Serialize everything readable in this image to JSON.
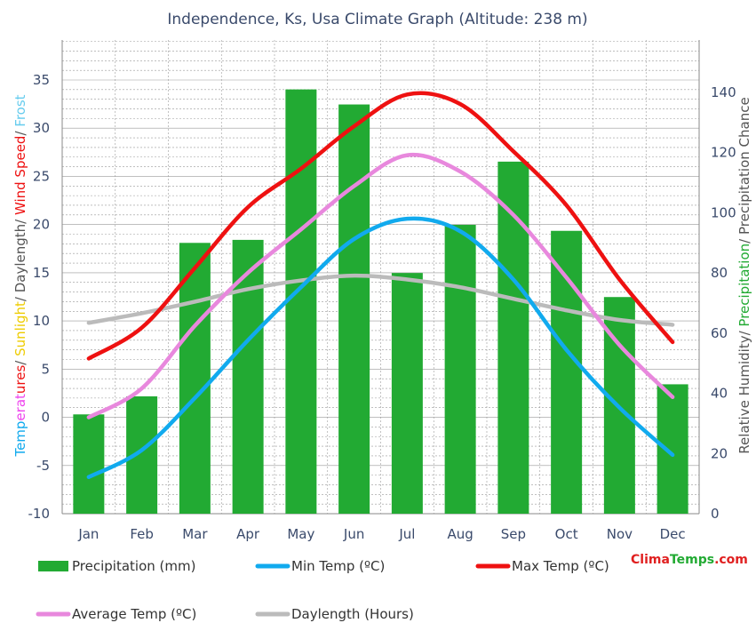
{
  "colors": {
    "precipitation": "#22aa33",
    "min_temp": "#11aaee",
    "max_temp": "#ee1111",
    "avg_temp": "#e888dd",
    "daylength": "#bbbbbb",
    "grid": "#999999",
    "text": "#3a4a6b",
    "brand_red": "#e02020",
    "brand_green": "#22aa33"
  },
  "brand": {
    "part1": "Clima",
    "part2": "Temps",
    "part3": ".com"
  },
  "left_label_parts": [
    {
      "text": "Temperatures",
      "color": "#11aaee"
    },
    {
      "text": "Temperatures",
      "color": "#ee44ee"
    },
    {
      "text": "Temperatures",
      "color": "#ee1111"
    },
    {
      "text": "/ ",
      "color": "#555555"
    },
    {
      "text": "Sunlight",
      "color": "#eecc00"
    },
    {
      "text": "/ Daylength/ ",
      "color": "#555555"
    },
    {
      "text": "Wind Speed",
      "color": "#ee1111"
    },
    {
      "text": "/ ",
      "color": "#555555"
    },
    {
      "text": "Frost",
      "color": "#66ccee"
    }
  ],
  "right_label_parts": [
    {
      "text": "Relative Humidity/ ",
      "color": "#555555"
    },
    {
      "text": "Precipitation",
      "color": "#22aa33"
    },
    {
      "text": "/ Precipitation Chance",
      "color": "#555555"
    }
  ],
  "chart_data": {
    "type": "bar",
    "title": "Independence, Ks, Usa Climate Graph (Altitude: 238 m)",
    "categories": [
      "Jan",
      "Feb",
      "Mar",
      "Apr",
      "May",
      "Jun",
      "Jul",
      "Aug",
      "Sep",
      "Oct",
      "Nov",
      "Dec"
    ],
    "y_left": {
      "min": -10,
      "max": 35,
      "ticks": [
        -10,
        -5,
        0,
        5,
        10,
        15,
        20,
        25,
        30,
        35
      ]
    },
    "y_right": {
      "min": 0,
      "max": 140,
      "ticks": [
        0,
        20,
        40,
        60,
        80,
        100,
        120,
        140
      ]
    },
    "grid": true,
    "legend_position": "bottom",
    "series": [
      {
        "name": "Precipitation (mm)",
        "type": "bar",
        "axis": "right",
        "values": [
          33,
          39,
          90,
          91,
          141,
          136,
          80,
          96,
          117,
          94,
          72,
          43
        ]
      },
      {
        "name": "Min Temp (ºC)",
        "type": "line",
        "axis": "left",
        "values": [
          -6.2,
          -3.4,
          2.0,
          8.0,
          13.5,
          18.5,
          20.6,
          19.3,
          14.3,
          7.0,
          1.0,
          -3.9
        ]
      },
      {
        "name": "Max Temp (ºC)",
        "type": "line",
        "axis": "left",
        "values": [
          6.1,
          9.3,
          15.5,
          21.8,
          25.8,
          30.2,
          33.5,
          32.5,
          27.6,
          22.0,
          14.3,
          7.8
        ]
      },
      {
        "name": "Average Temp (ºC)",
        "type": "line",
        "axis": "left",
        "values": [
          0.0,
          3.0,
          9.5,
          15.0,
          19.5,
          24.0,
          27.2,
          25.5,
          21.0,
          14.5,
          7.5,
          2.1
        ]
      },
      {
        "name": "Daylength (Hours)",
        "type": "line",
        "axis": "left",
        "values": [
          9.8,
          10.8,
          12.0,
          13.3,
          14.2,
          14.7,
          14.3,
          13.5,
          12.3,
          11.1,
          10.1,
          9.6
        ]
      }
    ]
  }
}
